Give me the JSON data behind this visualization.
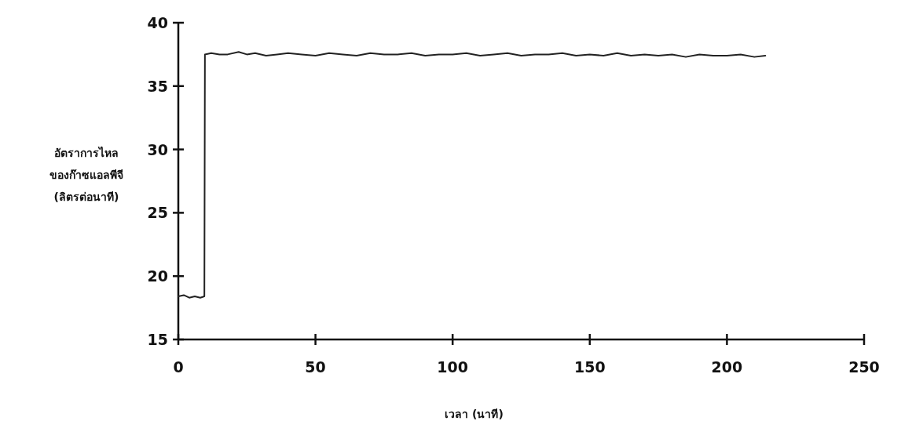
{
  "chart_data": {
    "type": "line",
    "xlabel": "เวลา (นาที)",
    "ylabel": "อัตราการไหล\nของก๊าซแอลพีจี\n(ลิตรต่อนาที)",
    "xlim": [
      0,
      250
    ],
    "ylim": [
      15,
      40
    ],
    "xticks": [
      0,
      50,
      100,
      150,
      200,
      250
    ],
    "yticks": [
      15,
      20,
      25,
      30,
      35,
      40
    ],
    "grid": false,
    "marker": "none",
    "line_style": "solid",
    "series": [
      {
        "color": "#222222",
        "x": [
          0,
          2,
          4,
          6,
          8,
          9.5,
          9.7,
          12,
          15,
          18,
          22,
          25,
          28,
          32,
          36,
          40,
          45,
          50,
          55,
          60,
          65,
          70,
          75,
          80,
          85,
          90,
          95,
          100,
          105,
          110,
          115,
          120,
          125,
          130,
          135,
          140,
          145,
          150,
          155,
          160,
          165,
          170,
          175,
          180,
          185,
          190,
          195,
          200,
          205,
          210,
          214
        ],
        "values": [
          18.4,
          18.5,
          18.3,
          18.4,
          18.3,
          18.4,
          37.5,
          37.6,
          37.5,
          37.5,
          37.7,
          37.5,
          37.6,
          37.4,
          37.5,
          37.6,
          37.5,
          37.4,
          37.6,
          37.5,
          37.4,
          37.6,
          37.5,
          37.5,
          37.6,
          37.4,
          37.5,
          37.5,
          37.6,
          37.4,
          37.5,
          37.6,
          37.4,
          37.5,
          37.5,
          37.6,
          37.4,
          37.5,
          37.4,
          37.6,
          37.4,
          37.5,
          37.4,
          37.5,
          37.3,
          37.5,
          37.4,
          37.4,
          37.5,
          37.3,
          37.4
        ]
      }
    ]
  }
}
